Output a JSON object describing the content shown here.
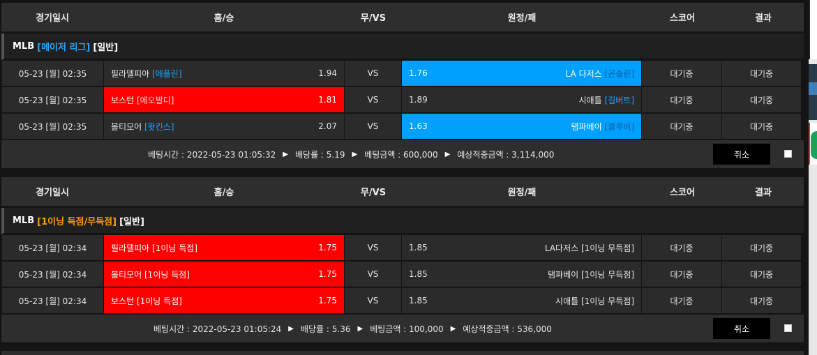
{
  "header": {
    "date": "경기일시",
    "home": "홈/승",
    "draw": "무/VS",
    "away": "원정/패",
    "score": "스코어",
    "result": "결과"
  },
  "bets": [
    {
      "league": {
        "name": "MLB",
        "sub": "[메이저 리그]",
        "type": "[일반]",
        "sub_color": "#1fa7ff"
      },
      "rows": [
        {
          "date": "05-23 [월] 02:35",
          "home": "필라델피아",
          "home_tag": "[에플린]",
          "home_odds": "1.94",
          "vs": "VS",
          "away_odds": "1.76",
          "away": "LA 다저스",
          "away_tag": "[곤솔린]",
          "score": "대기중",
          "result": "대기중",
          "selected": "away"
        },
        {
          "date": "05-23 [월] 02:35",
          "home": "보스턴",
          "home_tag": "[에오발디]",
          "home_odds": "1.81",
          "vs": "VS",
          "away_odds": "1.89",
          "away": "시애틀",
          "away_tag": "[길버트]",
          "score": "대기중",
          "result": "대기중",
          "selected": "home"
        },
        {
          "date": "05-23 [월] 02:35",
          "home": "볼티모어",
          "home_tag": "[왓킨스]",
          "home_odds": "2.07",
          "vs": "VS",
          "away_odds": "1.63",
          "away": "탬파베이",
          "away_tag": "[클루버]",
          "score": "대기중",
          "result": "대기중",
          "selected": "away"
        }
      ],
      "footer": {
        "time_label": "베팅시간 : 2022-05-23 01:05:32",
        "odds_label": "배당률 : 5.19",
        "amount_label": "베팅금액 : 600,000",
        "expected_label": "예상적중금액 : 3,114,000",
        "cancel": "취소"
      }
    },
    {
      "league": {
        "name": "MLB",
        "sub": "[1이닝 득점/무득점]",
        "type": "[일반]",
        "sub_color": "#ff9e00"
      },
      "rows": [
        {
          "date": "05-23 [월] 02:34",
          "home": "필라델피아",
          "home_tag": "[1이닝 득점]",
          "home_odds": "1.75",
          "vs": "VS",
          "away_odds": "1.85",
          "away": "LA다저스",
          "away_tag": "[1이닝 무득점]",
          "score": "대기중",
          "result": "대기중",
          "selected": "home"
        },
        {
          "date": "05-23 [월] 02:34",
          "home": "볼티모어",
          "home_tag": "[1이닝 득점]",
          "home_odds": "1.75",
          "vs": "VS",
          "away_odds": "1.85",
          "away": "탬파베이",
          "away_tag": "[1이닝 무득점]",
          "score": "대기중",
          "result": "대기중",
          "selected": "home"
        },
        {
          "date": "05-23 [월] 02:34",
          "home": "보스턴",
          "home_tag": "[1이닝 득점]",
          "home_odds": "1.75",
          "vs": "VS",
          "away_odds": "1.85",
          "away": "시애틀",
          "away_tag": "[1이닝 무득점]",
          "score": "대기중",
          "result": "대기중",
          "selected": "home"
        }
      ],
      "footer": {
        "time_label": "베팅시간 : 2022-05-23 01:05:24",
        "odds_label": "배당률 : 5.36",
        "amount_label": "베팅금액 : 100,000",
        "expected_label": "예상적중금액 : 536,000",
        "cancel": "취소"
      }
    }
  ],
  "colors": {
    "selected_home": "#ff0000",
    "selected_away": "#00a0ff"
  }
}
